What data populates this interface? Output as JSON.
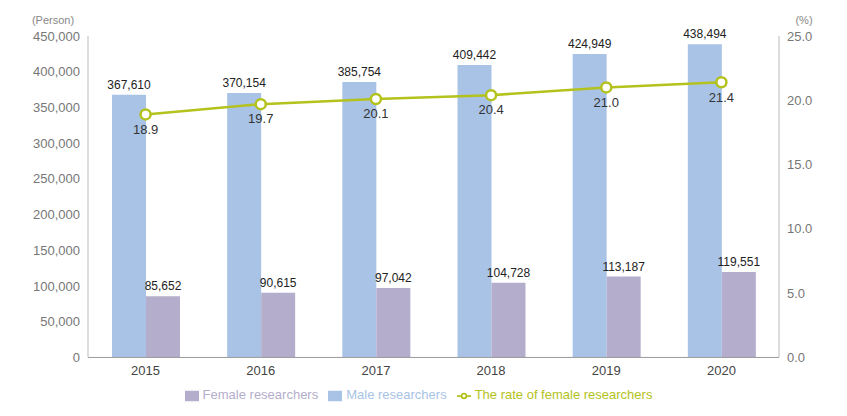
{
  "chart_data": {
    "type": "bar",
    "categories": [
      "2015",
      "2016",
      "2017",
      "2018",
      "2019",
      "2020"
    ],
    "ylabel": "(Person)",
    "y2label": "(%)",
    "ylim": [
      0,
      450000
    ],
    "yticks": [
      {
        "value": 0,
        "label": "0"
      },
      {
        "value": 50000,
        "label": "50,000"
      },
      {
        "value": 100000,
        "label": "100,000"
      },
      {
        "value": 150000,
        "label": "150,000"
      },
      {
        "value": 200000,
        "label": "200,000"
      },
      {
        "value": 250000,
        "label": "250,000"
      },
      {
        "value": 300000,
        "label": "300,000"
      },
      {
        "value": 350000,
        "label": "350,000"
      },
      {
        "value": 400000,
        "label": "400,000"
      },
      {
        "value": 450000,
        "label": "450,000"
      }
    ],
    "y2lim": [
      0,
      25
    ],
    "y2ticks": [
      {
        "value": 0,
        "label": "0.0"
      },
      {
        "value": 5,
        "label": "5.0"
      },
      {
        "value": 10,
        "label": "10.0"
      },
      {
        "value": 15,
        "label": "15.0"
      },
      {
        "value": 20,
        "label": "20.0"
      },
      {
        "value": 25,
        "label": "25.0"
      }
    ],
    "grid": false,
    "legend": "bottom",
    "data_labels": true,
    "series": [
      {
        "name": "Male researchers",
        "type": "bar",
        "color": "#a8c3e6",
        "values": [
          367610,
          370154,
          385754,
          409442,
          424949,
          438494
        ],
        "value_labels": [
          "367,610",
          "370,154",
          "385,754",
          "409,442",
          "424,949",
          "438,494"
        ]
      },
      {
        "name": "Female researchers",
        "type": "bar",
        "color": "#b4adcb",
        "values": [
          85652,
          90615,
          97042,
          104728,
          113187,
          119551
        ],
        "value_labels": [
          "85,652",
          "90,615",
          "97,042",
          "104,728",
          "113,187",
          "119,551"
        ]
      },
      {
        "name": "The rate of female researchers",
        "type": "line",
        "axis": "y2",
        "color": "#b3c21c",
        "marker": "circle",
        "values": [
          18.9,
          19.7,
          20.1,
          20.4,
          21.0,
          21.4
        ],
        "value_labels": [
          "18.9",
          "19.7",
          "20.1",
          "20.4",
          "21.0",
          "21.4"
        ]
      }
    ]
  }
}
